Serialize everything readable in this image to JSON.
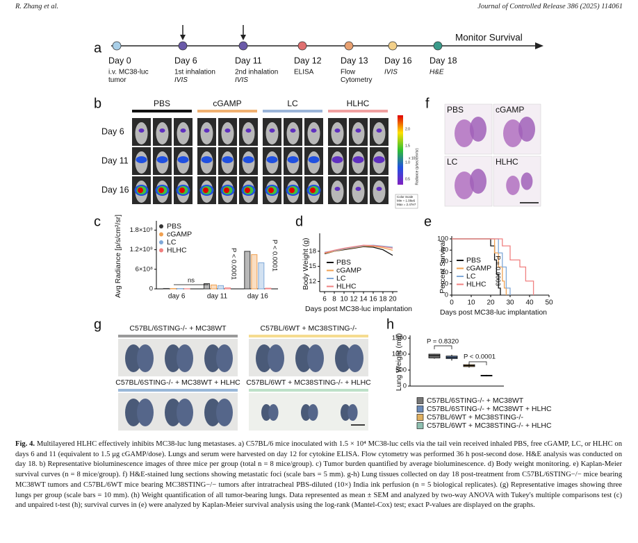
{
  "header": {
    "authors": "R. Zhang et al.",
    "journal": "Journal of Controlled Release 386 (2025) 114061"
  },
  "panel_labels": [
    "a",
    "b",
    "c",
    "d",
    "e",
    "f",
    "g",
    "h"
  ],
  "timeline": {
    "end_label": "Monitor Survival",
    "events": [
      {
        "day": "Day 0",
        "color": "#a9cfe8",
        "lines": [
          "i.v. MC38-luc",
          "tumor"
        ]
      },
      {
        "day": "Day 6",
        "color": "#6a5aa8",
        "lines": [
          "1st inhalation",
          "IVIS"
        ]
      },
      {
        "day": "Day 11",
        "color": "#6a5aa8",
        "lines": [
          "2nd inhalation",
          "IVIS"
        ]
      },
      {
        "day": "Day 12",
        "color": "#e07070",
        "lines": [
          "ELISA"
        ]
      },
      {
        "day": "Day 13",
        "color": "#e8a070",
        "lines": [
          "Flow",
          "Cytometry"
        ]
      },
      {
        "day": "Day 16",
        "color": "#f2d08a",
        "lines": [
          "IVIS"
        ]
      },
      {
        "day": "Day 18",
        "color": "#3a9a8a",
        "lines": [
          "H&E"
        ]
      }
    ]
  },
  "imaging": {
    "groups": [
      {
        "name": "PBS",
        "color": "#111111"
      },
      {
        "name": "cGAMP",
        "color": "#f0b070"
      },
      {
        "name": "LC",
        "color": "#9ab4d8"
      },
      {
        "name": "HLHC",
        "color": "#f0a0a0"
      }
    ],
    "rows": [
      "Day 6",
      "Day 11",
      "Day 16"
    ],
    "colorbar": {
      "ticks": [
        "2.0",
        "1.5",
        "1.0",
        "0.5"
      ],
      "exponent": "x 10⁷",
      "label": "Radiance (p/sec/cm²/sr)",
      "scale": [
        "Color Scale",
        "Min = 1.08e6",
        "Max = 2.47e7"
      ]
    }
  },
  "histology": {
    "labels": [
      "PBS",
      "cGAMP",
      "LC",
      "HLHC"
    ]
  },
  "ink": {
    "groups": [
      {
        "name": "C57BL/6STING-/- + MC38WT",
        "color": "#9a9a9a"
      },
      {
        "name": "C57BL/6WT + MC38STING-/-",
        "color": "#f5dc90"
      },
      {
        "name": "C57BL/6STING-/- + MC38WT + HLHC",
        "color": "#9ab8d8"
      },
      {
        "name": "C57BL/6WT + MC38STING-/- + HLHC",
        "color": "#bde0c8"
      }
    ]
  },
  "chart_data": [
    {
      "type": "bar",
      "ylabel": "Avg Radiance [p/s/cm²/sr]",
      "categories": [
        "day 6",
        "day 11",
        "day 16"
      ],
      "series": [
        {
          "name": "PBS",
          "color": "#333333",
          "values": [
            12000000,
            160000000,
            1150000000
          ]
        },
        {
          "name": "cGAMP",
          "color": "#f0a050",
          "values": [
            10000000,
            120000000,
            1050000000
          ]
        },
        {
          "name": "LC",
          "color": "#7fa8d8",
          "values": [
            9000000,
            100000000,
            800000000
          ]
        },
        {
          "name": "HLHC",
          "color": "#f08080",
          "values": [
            5000000,
            30000000,
            20000000
          ]
        }
      ],
      "ylim": [
        0,
        2000000000
      ],
      "yticks": [
        0,
        {
          "value": 600000000,
          "label": "6×10⁸"
        },
        {
          "value": 1200000000,
          "label": "1.2×10⁹"
        },
        {
          "value": 1800000000,
          "label": "1.8×10⁹"
        }
      ],
      "annotations": [
        "ns",
        "P < 0.0001",
        "P < 0.0001"
      ]
    },
    {
      "type": "line",
      "ylabel": "Body Weight (g)",
      "xlabel": "Days post MC38-luc implantation",
      "x": [
        6,
        8,
        10,
        12,
        14,
        16,
        18,
        20
      ],
      "series": [
        {
          "name": "PBS",
          "color": "#111111",
          "values": [
            17.5,
            18,
            18.3,
            18.6,
            18.9,
            18.8,
            18.3,
            17.2
          ]
        },
        {
          "name": "cGAMP",
          "color": "#f0a050",
          "values": [
            17.6,
            18,
            18.4,
            18.7,
            19,
            19,
            18.7,
            18.2
          ]
        },
        {
          "name": "LC",
          "color": "#7fa8d8",
          "values": [
            17.8,
            18.1,
            18.5,
            18.8,
            19.1,
            19.2,
            19,
            18.8
          ]
        },
        {
          "name": "HLHC",
          "color": "#f08080",
          "values": [
            17.7,
            18.2,
            18.6,
            18.9,
            19.2,
            19.1,
            18.9,
            18.6
          ]
        }
      ],
      "xlim": [
        5,
        21
      ],
      "xticks": [
        6,
        8,
        10,
        12,
        14,
        16,
        18,
        20
      ],
      "ylim": [
        10,
        21
      ],
      "yticks": [
        12,
        15,
        18
      ]
    },
    {
      "type": "step",
      "ylabel": "Percent Survival",
      "xlabel": "Days post MC38-luc implantation",
      "series": [
        {
          "name": "PBS",
          "color": "#111111",
          "x": [
            0,
            20,
            22,
            23,
            24,
            25
          ],
          "values": [
            100,
            87.5,
            62.5,
            37.5,
            12.5,
            0
          ]
        },
        {
          "name": "cGAMP",
          "color": "#f0a050",
          "x": [
            0,
            22,
            24,
            26,
            27,
            28
          ],
          "values": [
            100,
            75,
            50,
            25,
            12.5,
            0
          ]
        },
        {
          "name": "LC",
          "color": "#7fa8d8",
          "x": [
            0,
            24,
            26,
            28,
            30
          ],
          "values": [
            100,
            75,
            50,
            12.5,
            0
          ]
        },
        {
          "name": "HLHC",
          "color": "#f08080",
          "x": [
            0,
            26,
            30,
            35,
            38,
            42
          ],
          "values": [
            100,
            87.5,
            62.5,
            50,
            25,
            0
          ]
        }
      ],
      "xlim": [
        0,
        50
      ],
      "xticks": [
        0,
        10,
        20,
        30,
        40,
        50
      ],
      "ylim": [
        0,
        100
      ],
      "yticks": [
        0,
        20,
        40,
        60,
        80,
        100
      ],
      "annotations": [
        "P = 0.0003"
      ]
    },
    {
      "type": "box",
      "ylabel": "Lung Weight (mg)",
      "categories": [
        "C57BL/6STING-/- + MC38WT",
        "C57BL/6STING-/- + MC38WT + HLHC",
        "C57BL/6WT + MC38STING-/-",
        "C57BL/6WT + MC38STING-/- + HLHC"
      ],
      "colors": [
        "#777777",
        "#6a8ab8",
        "#e0b060",
        "#8fbfb0"
      ],
      "boxes": [
        {
          "min": 860,
          "q1": 880,
          "median": 950,
          "q3": 1000,
          "max": 1010
        },
        {
          "min": 800,
          "q1": 860,
          "median": 900,
          "q3": 940,
          "max": 980
        },
        {
          "min": 580,
          "q1": 610,
          "median": 640,
          "q3": 670,
          "max": 700
        },
        {
          "min": 305,
          "q1": 315,
          "median": 330,
          "q3": 340,
          "max": 350
        }
      ],
      "ylim": [
        0,
        1500
      ],
      "yticks": [
        0,
        500,
        1000,
        1500
      ],
      "annotations": [
        "P = 0.8320",
        "P < 0.0001"
      ]
    }
  ],
  "caption": {
    "label": "Fig. 4.",
    "text": "Multilayered HLHC effectively inhibits MC38-luc lung metastases. a) C57BL/6 mice inoculated with 1.5 × 10⁴ MC38-luc cells via the tail vein received inhaled PBS, free cGAMP, LC, or HLHC on days 6 and 11 (equivalent to 1.5 μg cGAMP/dose). Lungs and serum were harvested on day 12 for cytokine ELISA. Flow cytometry was performed 36 h post-second dose. H&E analysis was conducted on day 18. b) Representative bioluminescence images of three mice per group (total n = 8 mice/group). c) Tumor burden quantified by average bioluminescence. d) Body weight monitoring. e) Kaplan-Meier survival curves (n = 8 mice/group). f) H&E-stained lung sections showing metastatic foci (scale bars = 5 mm). g-h) Lung tissues collected on day 18 post-treatment from C57BL/6STING−/− mice bearing MC38WT tumors and C57BL/6WT mice bearing MC38STING−/− tumors after intratracheal PBS-diluted (10×) India ink perfusion (n = 5 biological replicates). (g) Representative images showing three lungs per group (scale bars = 10 mm). (h) Weight quantification of all tumor-bearing lungs. Data represented as mean ± SEM and analyzed by two-way ANOVA with Tukey's multiple comparisons test (c) and unpaired t-test (h); survival curves in (e) were analyzed by Kaplan-Meier survival analysis using the log-rank (Mantel-Cox) test; exact P-values are displayed on the graphs."
  }
}
